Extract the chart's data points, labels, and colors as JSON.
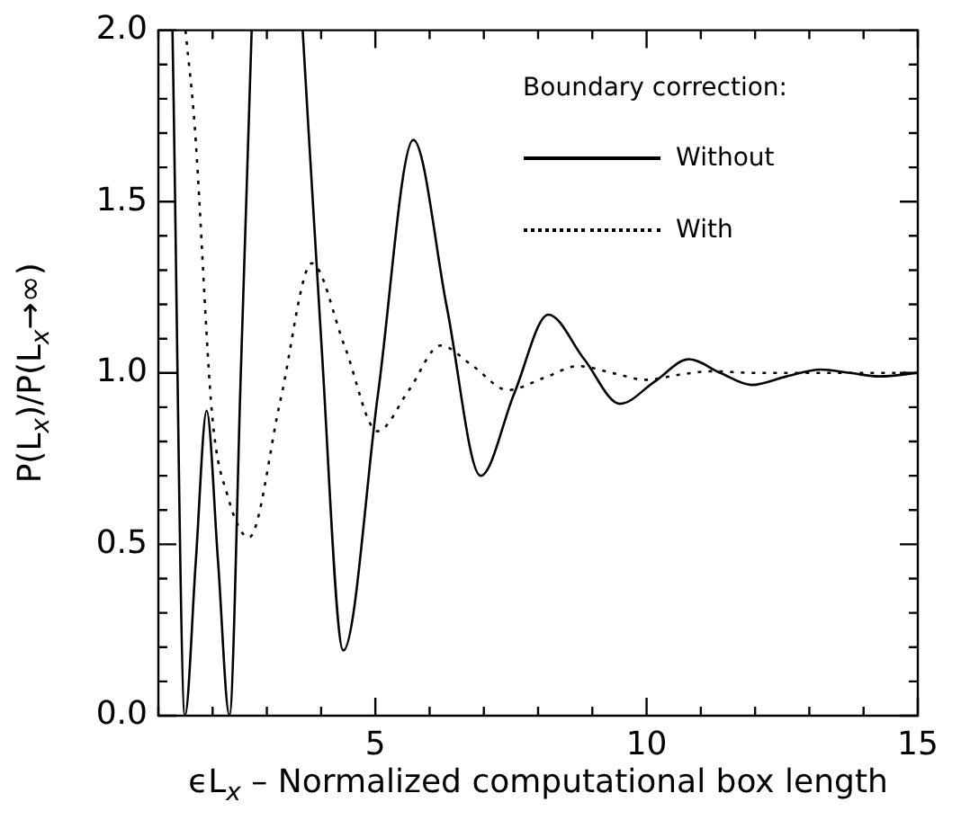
{
  "chart_data": {
    "type": "line",
    "xlabel": "ϵL$_{x}$ – Normalized computational box length",
    "ylabel": "P(L$_{x}$)/P(L$_{x}$→∞)",
    "legend_title": "Boundary correction:",
    "xlim": [
      1,
      15
    ],
    "ylim": [
      0,
      2
    ],
    "xticks": [
      {
        "value": 1,
        "label": null
      },
      {
        "value": 2,
        "label": null
      },
      {
        "value": 3,
        "label": null
      },
      {
        "value": 4,
        "label": null
      },
      5,
      {
        "value": 6,
        "label": null
      },
      {
        "value": 7,
        "label": null
      },
      {
        "value": 8,
        "label": null
      },
      {
        "value": 9,
        "label": null
      },
      10,
      {
        "value": 11,
        "label": null
      },
      {
        "value": 12,
        "label": null
      },
      {
        "value": 13,
        "label": null
      },
      {
        "value": 14,
        "label": null
      },
      15
    ],
    "yticks": [
      {
        "value": 0,
        "label": "0.0"
      },
      {
        "value": 0.1,
        "label": null
      },
      {
        "value": 0.2,
        "label": null
      },
      {
        "value": 0.3,
        "label": null
      },
      {
        "value": 0.4,
        "label": null
      },
      {
        "value": 0.5,
        "label": "0.5"
      },
      {
        "value": 0.6,
        "label": null
      },
      {
        "value": 0.7,
        "label": null
      },
      {
        "value": 0.8,
        "label": null
      },
      {
        "value": 0.9,
        "label": null
      },
      {
        "value": 1,
        "label": "1.0"
      },
      {
        "value": 1.1,
        "label": null
      },
      {
        "value": 1.2,
        "label": null
      },
      {
        "value": 1.3,
        "label": null
      },
      {
        "value": 1.4,
        "label": null
      },
      {
        "value": 1.5,
        "label": "1.5"
      },
      {
        "value": 1.6,
        "label": null
      },
      {
        "value": 1.7,
        "label": null
      },
      {
        "value": 1.8,
        "label": null
      },
      {
        "value": 1.9,
        "label": null
      },
      {
        "value": 2,
        "label": "2.0"
      }
    ],
    "grid": false,
    "legend": "top right",
    "marker": "none",
    "series": [
      {
        "name": "Without",
        "color": "#000000",
        "line_style": "solid",
        "x": [
          1.26,
          1.49,
          1.69,
          1.89,
          2.1,
          2.31,
          2.52,
          2.72,
          3.2,
          3.66,
          4.0,
          4.41,
          5.05,
          5.7,
          6.32,
          6.94,
          7.56,
          8.19,
          8.85,
          9.51,
          10.15,
          10.78,
          11.36,
          11.94,
          12.58,
          13.21,
          13.75,
          14.3,
          15
        ],
        "values": [
          2.0,
          0,
          0.45,
          0.89,
          0.45,
          0,
          1.0,
          2.0,
          null,
          2.0,
          1.1,
          0.19,
          0.94,
          1.68,
          1.19,
          0.7,
          0.94,
          1.17,
          1.04,
          0.91,
          0.975,
          1.04,
          1.0,
          0.965,
          0.99,
          1.01,
          1.0,
          0.99,
          1.0
        ]
      },
      {
        "name": "With",
        "color": "#000000",
        "line_style": "dotted",
        "x": [
          1.5,
          1.67,
          1.99,
          2.28,
          2.67,
          3.25,
          3.83,
          4.43,
          5.04,
          5.62,
          6.2,
          6.8,
          7.44,
          8.1,
          8.74,
          9.37,
          10.0,
          10.6,
          11.2,
          12.0,
          13.0,
          14.0,
          15.0
        ],
        "values": [
          2.0,
          1.72,
          0.88,
          0.64,
          0.52,
          0.92,
          1.32,
          1.08,
          0.83,
          0.95,
          1.08,
          1.02,
          0.95,
          0.985,
          1.02,
          1.0,
          0.98,
          0.995,
          1.005,
          1.0,
          1.0,
          1.0,
          1.0
        ]
      }
    ]
  }
}
